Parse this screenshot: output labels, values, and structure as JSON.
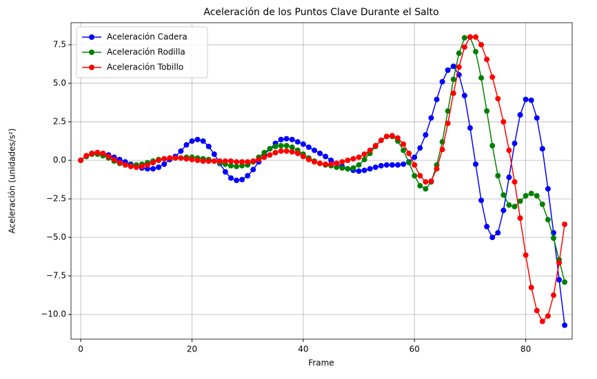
{
  "chart_data": {
    "type": "line",
    "title": "Aceleración de los Puntos Clave Durante el Salto",
    "x_label": "Frame",
    "y_label": "Aceleración (unidades/s²)",
    "x": [
      0,
      1,
      2,
      3,
      4,
      5,
      6,
      7,
      8,
      9,
      10,
      11,
      12,
      13,
      14,
      15,
      16,
      17,
      18,
      19,
      20,
      21,
      22,
      23,
      24,
      25,
      26,
      27,
      28,
      29,
      30,
      31,
      32,
      33,
      34,
      35,
      36,
      37,
      38,
      39,
      40,
      41,
      42,
      43,
      44,
      45,
      46,
      47,
      48,
      49,
      50,
      51,
      52,
      53,
      54,
      55,
      56,
      57,
      58,
      59,
      60,
      61,
      62,
      63,
      64,
      65,
      66,
      67,
      68,
      69,
      70,
      71,
      72,
      73,
      74,
      75,
      76,
      77,
      78,
      79,
      80,
      81,
      82,
      83,
      84,
      85,
      86,
      87
    ],
    "series": [
      {
        "name": "Aceleración Cadera",
        "color": "#0000ff",
        "values": [
          0,
          0.25,
          0.45,
          0.5,
          0.45,
          0.35,
          0.2,
          0.05,
          -0.1,
          -0.25,
          -0.4,
          -0.5,
          -0.55,
          -0.55,
          -0.45,
          -0.25,
          0.05,
          0.25,
          0.6,
          1.0,
          1.25,
          1.35,
          1.25,
          0.9,
          0.4,
          -0.2,
          -0.75,
          -1.15,
          -1.3,
          -1.25,
          -1.0,
          -0.6,
          -0.1,
          0.35,
          0.75,
          1.1,
          1.35,
          1.4,
          1.35,
          1.2,
          1.05,
          0.85,
          0.65,
          0.45,
          0.25,
          0.0,
          -0.2,
          -0.4,
          -0.55,
          -0.65,
          -0.7,
          -0.65,
          -0.55,
          -0.45,
          -0.35,
          -0.3,
          -0.3,
          -0.3,
          -0.25,
          -0.1,
          0.2,
          0.8,
          1.65,
          2.75,
          3.95,
          5.1,
          5.85,
          6.1,
          5.55,
          4.2,
          2.1,
          -0.25,
          -2.6,
          -4.3,
          -5.0,
          -4.7,
          -3.25,
          -1.1,
          1.1,
          2.95,
          3.95,
          3.9,
          2.75,
          0.75,
          -1.85,
          -4.7,
          -7.75,
          -10.7
        ]
      },
      {
        "name": "Aceleración Rodilla",
        "color": "#008000",
        "values": [
          0,
          0.25,
          0.4,
          0.4,
          0.3,
          0.15,
          -0.05,
          -0.2,
          -0.3,
          -0.35,
          -0.3,
          -0.25,
          -0.15,
          -0.05,
          0.05,
          0.1,
          0.15,
          0.15,
          0.15,
          0.2,
          0.2,
          0.15,
          0.1,
          0.05,
          -0.05,
          -0.15,
          -0.25,
          -0.35,
          -0.4,
          -0.35,
          -0.3,
          -0.1,
          0.2,
          0.5,
          0.75,
          0.9,
          0.95,
          0.95,
          0.85,
          0.65,
          0.4,
          0.15,
          -0.05,
          -0.2,
          -0.3,
          -0.35,
          -0.45,
          -0.5,
          -0.55,
          -0.5,
          -0.3,
          0.05,
          0.45,
          0.9,
          1.3,
          1.55,
          1.55,
          1.25,
          0.65,
          -0.15,
          -1.0,
          -1.65,
          -1.85,
          -1.4,
          -0.3,
          1.2,
          3.2,
          5.25,
          6.95,
          7.95,
          8.0,
          7.05,
          5.35,
          3.2,
          0.95,
          -1.0,
          -2.25,
          -2.9,
          -3.0,
          -2.65,
          -2.3,
          -2.15,
          -2.3,
          -2.85,
          -3.85,
          -5.05,
          -6.45,
          -7.9
        ]
      },
      {
        "name": "Aceleración Tobillo",
        "color": "#ff0000",
        "values": [
          0,
          0.3,
          0.45,
          0.5,
          0.45,
          0.25,
          0.05,
          -0.15,
          -0.3,
          -0.4,
          -0.45,
          -0.4,
          -0.3,
          -0.15,
          0.0,
          0.1,
          0.15,
          0.15,
          0.15,
          0.1,
          0.05,
          0.0,
          -0.05,
          -0.05,
          -0.05,
          -0.05,
          -0.05,
          -0.05,
          -0.1,
          -0.1,
          -0.1,
          -0.05,
          0.05,
          0.2,
          0.35,
          0.5,
          0.6,
          0.6,
          0.55,
          0.45,
          0.25,
          0.05,
          -0.1,
          -0.2,
          -0.25,
          -0.25,
          -0.2,
          -0.1,
          0.0,
          0.1,
          0.2,
          0.4,
          0.65,
          0.95,
          1.3,
          1.55,
          1.6,
          1.45,
          1.05,
          0.45,
          -0.3,
          -1.0,
          -1.4,
          -1.35,
          -0.55,
          0.7,
          2.4,
          4.35,
          6.05,
          7.35,
          8.0,
          8.0,
          7.5,
          6.55,
          5.4,
          4.0,
          2.5,
          0.65,
          -1.4,
          -3.75,
          -6.15,
          -8.25,
          -9.75,
          -10.45,
          -10.1,
          -8.75,
          -6.65,
          -4.15
        ]
      }
    ],
    "xlim": [
      -1.75,
      88.35
    ],
    "ylim": [
      -11.6,
      8.93
    ],
    "xticks": [
      0,
      20,
      40,
      60,
      80
    ],
    "yticks": [
      {
        "value": -10,
        "label": "−10.0"
      },
      {
        "value": -7.5,
        "label": "−7.5"
      },
      {
        "value": -5,
        "label": "−5.0"
      },
      {
        "value": -2.5,
        "label": "−2.5"
      },
      {
        "value": 0,
        "label": "0.0"
      },
      2.5,
      {
        "value": 5,
        "label": "5.0"
      },
      7.5
    ],
    "grid": true,
    "legend": "upper-left"
  }
}
